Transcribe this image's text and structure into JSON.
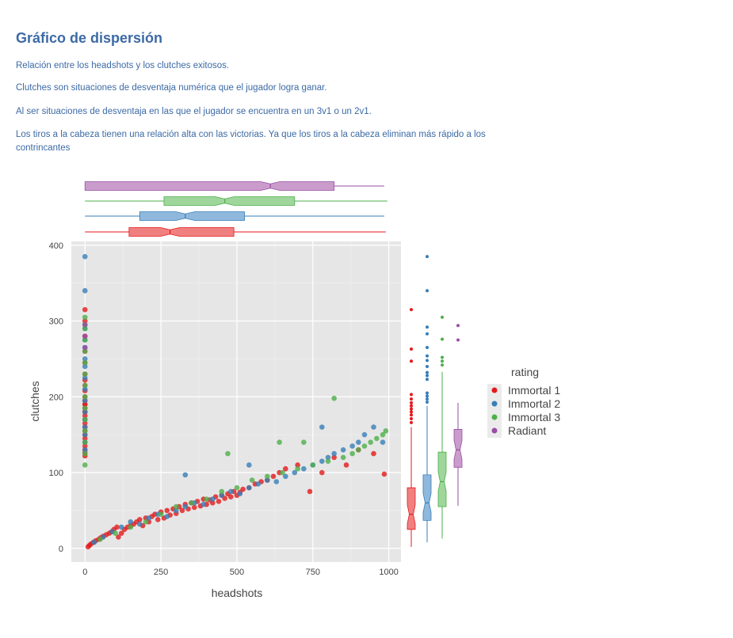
{
  "page": {
    "title": "Gráfico de dispersión",
    "paragraphs": [
      "Relación entre los headshots y los clutches exitosos.",
      "Clutches son situaciones de desventaja numérica que el jugador logra ganar.",
      "Al ser situaciones de desventaja en las que el jugador se encuentra en un 3v1 o un 2v1.",
      "Los tiros a la cabeza tienen una relación alta con las victorias. Ya que los tiros a la cabeza eliminan más rápido a los contrincantes"
    ]
  },
  "chart_data": {
    "type": "scatter",
    "xlabel": "headshots",
    "ylabel": "clutches",
    "xlim": [
      -45,
      1040
    ],
    "ylim": [
      -18,
      405
    ],
    "xticks": [
      0,
      250,
      500,
      750,
      1000
    ],
    "yticks": [
      0,
      100,
      200,
      300,
      400
    ],
    "grid": true,
    "legend": {
      "title": "rating",
      "position": "right"
    },
    "colors": {
      "Immortal 1": "#e41a1c",
      "Immortal 2": "#377eb8",
      "Immortal 3": "#4daf4a",
      "Radiant": "#984ea3"
    },
    "series": [
      {
        "name": "Immortal 1",
        "x": [
          0,
          0,
          0,
          0,
          0,
          0,
          0,
          0,
          0,
          0,
          0,
          0,
          0,
          0,
          0,
          0,
          0,
          0,
          0,
          0,
          0,
          0,
          0,
          0,
          0,
          0,
          0,
          0,
          10,
          15,
          20,
          28,
          35,
          45,
          52,
          60,
          70,
          80,
          88,
          95,
          105,
          110,
          120,
          130,
          140,
          150,
          160,
          170,
          180,
          190,
          200,
          210,
          220,
          230,
          240,
          250,
          260,
          270,
          280,
          290,
          300,
          310,
          320,
          330,
          340,
          350,
          360,
          370,
          380,
          390,
          400,
          410,
          420,
          430,
          440,
          450,
          460,
          470,
          480,
          490,
          500,
          510,
          520,
          540,
          560,
          580,
          600,
          620,
          640,
          660,
          700,
          740,
          780,
          820,
          860,
          900,
          950,
          985
        ],
        "y": [
          315,
          300,
          280,
          260,
          245,
          230,
          222,
          215,
          208,
          200,
          195,
          190,
          185,
          180,
          175,
          170,
          165,
          160,
          155,
          150,
          145,
          140,
          135,
          130,
          126,
          122,
          180,
          190,
          2,
          4,
          6,
          8,
          10,
          12,
          14,
          16,
          18,
          20,
          22,
          25,
          28,
          15,
          20,
          25,
          28,
          30,
          32,
          35,
          38,
          30,
          40,
          35,
          42,
          45,
          38,
          48,
          40,
          50,
          44,
          52,
          46,
          55,
          50,
          58,
          52,
          60,
          54,
          62,
          56,
          65,
          58,
          64,
          60,
          68,
          62,
          70,
          66,
          72,
          68,
          75,
          70,
          74,
          78,
          80,
          85,
          88,
          90,
          95,
          100,
          105,
          110,
          75,
          100,
          120,
          110,
          130,
          125,
          98
        ]
      },
      {
        "name": "Immortal 2",
        "x": [
          0,
          0,
          0,
          0,
          0,
          0,
          0,
          0,
          0,
          0,
          0,
          0,
          0,
          0,
          0,
          0,
          0,
          30,
          60,
          90,
          120,
          150,
          180,
          210,
          240,
          270,
          300,
          330,
          360,
          390,
          420,
          450,
          480,
          510,
          540,
          570,
          600,
          630,
          660,
          690,
          720,
          750,
          780,
          800,
          820,
          850,
          880,
          900,
          920,
          950,
          980,
          330,
          540,
          780
        ],
        "y": [
          385,
          340,
          295,
          290,
          275,
          265,
          250,
          240,
          225,
          210,
          195,
          180,
          170,
          160,
          150,
          140,
          130,
          8,
          15,
          22,
          28,
          35,
          32,
          40,
          45,
          42,
          50,
          55,
          60,
          58,
          65,
          70,
          75,
          72,
          80,
          85,
          90,
          88,
          95,
          100,
          105,
          110,
          115,
          120,
          125,
          130,
          135,
          140,
          150,
          160,
          140,
          97,
          110,
          160
        ]
      },
      {
        "name": "Immortal 3",
        "x": [
          0,
          0,
          0,
          0,
          0,
          0,
          0,
          0,
          0,
          0,
          0,
          0,
          0,
          0,
          0,
          50,
          100,
          150,
          200,
          250,
          300,
          350,
          400,
          450,
          500,
          550,
          600,
          650,
          700,
          750,
          800,
          850,
          880,
          900,
          920,
          940,
          960,
          980,
          990,
          820,
          720,
          640,
          470
        ],
        "y": [
          305,
          295,
          275,
          260,
          245,
          230,
          215,
          200,
          185,
          170,
          155,
          140,
          125,
          110,
          290,
          12,
          20,
          28,
          35,
          45,
          55,
          60,
          65,
          75,
          80,
          90,
          95,
          100,
          105,
          110,
          115,
          120,
          125,
          130,
          135,
          140,
          145,
          150,
          155,
          198,
          140,
          140,
          125
        ]
      },
      {
        "name": "Radiant",
        "x": [
          0,
          0,
          0
        ],
        "y": [
          295,
          280,
          265
        ]
      }
    ],
    "marginal_boxplots": {
      "headshots": [
        {
          "name": "Radiant",
          "q1": 0,
          "median": 610,
          "q3": 820,
          "lower": 0,
          "upper": 985
        },
        {
          "name": "Immortal 3",
          "q1": 260,
          "median": 460,
          "q3": 690,
          "lower": 0,
          "upper": 995
        },
        {
          "name": "Immortal 2",
          "q1": 180,
          "median": 330,
          "q3": 525,
          "lower": 0,
          "upper": 985
        },
        {
          "name": "Immortal 1",
          "q1": 145,
          "median": 280,
          "q3": 490,
          "lower": 0,
          "upper": 990
        }
      ],
      "clutches": [
        {
          "name": "Immortal 1",
          "q1": 25,
          "median": 45,
          "q3": 80,
          "lower": 2,
          "upper": 160,
          "outliers": [
            315,
            263,
            247,
            203,
            197,
            192,
            188,
            184,
            180,
            176,
            171,
            166
          ]
        },
        {
          "name": "Immortal 2",
          "q1": 37,
          "median": 60,
          "q3": 97,
          "lower": 8,
          "upper": 188,
          "outliers": [
            385,
            340,
            292,
            283,
            265,
            254,
            248,
            240,
            232,
            228,
            223,
            205,
            201,
            197,
            193
          ]
        },
        {
          "name": "Immortal 3",
          "q1": 55,
          "median": 88,
          "q3": 127,
          "lower": 13,
          "upper": 233,
          "outliers": [
            305,
            276,
            252,
            247,
            242
          ]
        },
        {
          "name": "Radiant",
          "q1": 107,
          "median": 130,
          "q3": 157,
          "lower": 56,
          "upper": 192,
          "outliers": [
            294,
            275
          ]
        }
      ]
    }
  }
}
